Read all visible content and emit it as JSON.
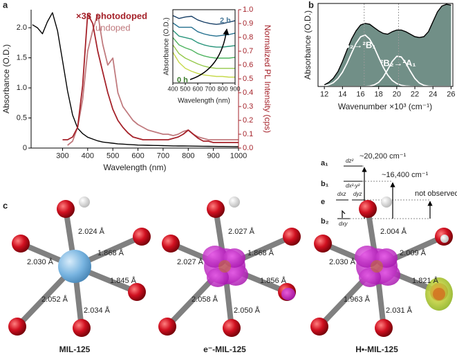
{
  "panel_labels": [
    "a",
    "b",
    "c"
  ],
  "chart_data": [
    {
      "type": "line",
      "xlabel": "Wavelength (nm)",
      "ylabel": "Absorbance (O.D.)",
      "y2label": "Normalized PL Intensity (cps)",
      "xlim": [
        175,
        1000
      ],
      "xticks": [
        300,
        400,
        500,
        600,
        700,
        800,
        900,
        1000
      ],
      "ylim": [
        0,
        2.3
      ],
      "yticks": [
        0,
        0.5,
        {
          "value": 1,
          "label": "1.0"
        },
        1.5,
        {
          "value": 2,
          "label": "2.0"
        }
      ],
      "y2lim": [
        0,
        1
      ],
      "y2ticks": [
        {
          "value": 0,
          "label": "0.0"
        },
        0.1,
        0.2,
        0.3,
        0.4,
        0.5,
        0.6,
        0.7,
        0.8,
        0.9,
        {
          "value": 1,
          "label": "1.0"
        }
      ],
      "y2color": "#a5222a",
      "x": [
        180,
        200,
        220,
        240,
        260,
        280,
        300,
        320,
        340,
        360,
        380,
        400,
        420,
        440,
        460,
        480,
        500,
        520,
        540,
        560,
        580,
        600,
        620,
        640,
        660,
        680,
        700,
        720,
        740,
        760,
        780,
        800,
        820,
        840,
        860,
        880,
        900,
        920,
        940,
        960,
        980,
        1000
      ],
      "series": [
        {
          "color": "#000000",
          "values": [
            2.05,
            2.0,
            1.9,
            2.1,
            2.25,
            1.95,
            1.45,
            0.95,
            0.55,
            0.33,
            0.24,
            0.18,
            0.15,
            0.12,
            0.1,
            0.09,
            0.08,
            0.07,
            0.065,
            0.06,
            0.055,
            0.05,
            0.048,
            0.046,
            0.044,
            0.042,
            0.04,
            0.038,
            0.036,
            0.035,
            0.034,
            0.033,
            0.032,
            0.031,
            0.03,
            0.029,
            0.028,
            0.027,
            0.026,
            0.025,
            0.024,
            0.023
          ]
        },
        {
          "color": "#c07a7e",
          "axis": "y2",
          "values": [
            null,
            null,
            null,
            null,
            null,
            null,
            null,
            0.02,
            0.05,
            0.15,
            0.35,
            0.7,
            0.85,
            0.97,
            0.75,
            0.6,
            0.65,
            0.4,
            0.3,
            0.25,
            0.2,
            0.17,
            0.15,
            0.13,
            0.12,
            0.11,
            0.1,
            0.1,
            0.09,
            0.1,
            0.12,
            0.13,
            0.1,
            0.08,
            0.07,
            0.06,
            0.06,
            0.06,
            0.06,
            0.06,
            0.06,
            0.06
          ]
        },
        {
          "color": "#a5222a",
          "axis": "y2",
          "values": [
            null,
            null,
            null,
            null,
            null,
            null,
            0.06,
            0.06,
            0.08,
            0.15,
            0.45,
            0.97,
            0.9,
            0.7,
            0.55,
            0.4,
            0.28,
            0.2,
            0.15,
            0.11,
            0.08,
            0.07,
            0.06,
            0.06,
            0.06,
            0.06,
            0.06,
            0.06,
            0.07,
            0.08,
            0.1,
            0.13,
            0.1,
            0.07,
            0.05,
            0.05,
            0.04,
            0.04,
            0.04,
            0.04,
            0.04,
            0.04
          ]
        }
      ],
      "annotations": [
        {
          "text": "×33",
          "color": "#a5222a"
        },
        {
          "text": "photodoped",
          "color": "#a5222a"
        },
        {
          "text": "undoped",
          "color": "#c07a7e"
        }
      ]
    },
    {
      "type": "line",
      "xlabel": "Wavelength (nm)",
      "ylabel": "Absorbance (O.D.)",
      "xlim": [
        400,
        900
      ],
      "xticks": [
        400,
        500,
        600,
        700,
        800,
        900
      ],
      "ylim": [
        0,
        1
      ],
      "x": [
        400,
        450,
        500,
        550,
        600,
        650,
        700,
        750,
        800,
        850,
        900
      ],
      "series": [
        {
          "color": "#c6d94a",
          "values": [
            0.42,
            0.28,
            0.2,
            0.16,
            0.13,
            0.11,
            0.1,
            0.09,
            0.09,
            0.08,
            0.08
          ]
        },
        {
          "color": "#94c84a",
          "values": [
            0.52,
            0.4,
            0.34,
            0.3,
            0.26,
            0.23,
            0.21,
            0.2,
            0.2,
            0.2,
            0.2
          ]
        },
        {
          "color": "#4db35e",
          "values": [
            0.62,
            0.52,
            0.48,
            0.45,
            0.4,
            0.37,
            0.35,
            0.34,
            0.34,
            0.34,
            0.35
          ]
        },
        {
          "color": "#27947a",
          "values": [
            0.72,
            0.64,
            0.62,
            0.6,
            0.55,
            0.52,
            0.5,
            0.49,
            0.49,
            0.5,
            0.51
          ]
        },
        {
          "color": "#226f8e",
          "values": [
            0.82,
            0.76,
            0.76,
            0.76,
            0.7,
            0.67,
            0.65,
            0.64,
            0.65,
            0.66,
            0.68
          ]
        },
        {
          "color": "#173f66",
          "values": [
            0.92,
            0.88,
            0.9,
            0.91,
            0.86,
            0.83,
            0.81,
            0.8,
            0.81,
            0.83,
            0.85
          ]
        }
      ],
      "annotations": [
        {
          "text": "2 h",
          "color": "#4a7a9a"
        },
        {
          "text": "0 h",
          "color": "#3a7a2a"
        }
      ]
    },
    {
      "type": "line",
      "xlabel": "Wavenumber ×10³ (cm⁻¹)",
      "ylabel": "Absorbance (O.D.)",
      "xlim": [
        11.3,
        26.2
      ],
      "xticks": [
        12,
        14,
        16,
        18,
        20,
        22,
        24,
        26
      ],
      "ylim": [
        0,
        1
      ],
      "vlines": [
        16.4,
        20.2
      ],
      "x": [
        12,
        12.5,
        13,
        13.5,
        14,
        14.5,
        15,
        15.5,
        16,
        16.5,
        17,
        17.5,
        18,
        18.5,
        19,
        19.5,
        20,
        20.5,
        21,
        21.5,
        22,
        22.5,
        23,
        23.5,
        24,
        24.5,
        25,
        25.5,
        26
      ],
      "series": [
        {
          "color": "#000000",
          "fill": "#718f87",
          "values": [
            0.02,
            0.05,
            0.1,
            0.18,
            0.3,
            0.44,
            0.57,
            0.67,
            0.74,
            0.76,
            0.75,
            0.71,
            0.67,
            0.64,
            0.63,
            0.66,
            0.68,
            0.68,
            0.66,
            0.63,
            0.6,
            0.59,
            0.6,
            0.66,
            0.78,
            0.9,
            0.97,
            0.99,
            0.98
          ]
        },
        {
          "color": "#ffffff",
          "values": [
            0.008,
            0.021,
            0.047,
            0.096,
            0.172,
            0.278,
            0.401,
            0.518,
            0.598,
            0.62,
            0.572,
            0.474,
            0.351,
            0.233,
            0.138,
            0.073,
            0.035,
            0.015,
            0.006,
            0.002,
            0,
            0,
            0,
            0,
            0,
            0,
            0,
            0,
            0
          ]
        },
        {
          "color": "#ffffff",
          "values": [
            0,
            0,
            0,
            0,
            0,
            0,
            0,
            0,
            0,
            0,
            0.005,
            0.018,
            0.05,
            0.112,
            0.204,
            0.302,
            0.364,
            0.356,
            0.284,
            0.184,
            0.097,
            0.041,
            0.014,
            0.004,
            0.001,
            0,
            0,
            0,
            0
          ]
        }
      ],
      "annotations": [
        {
          "text": "²B₂→²B₁",
          "color": "#ffffff"
        },
        {
          "text": "²B₂→²A₁",
          "color": "#ffffff"
        }
      ]
    }
  ],
  "energy_diagram": {
    "levels": [
      {
        "label": "a₁",
        "orbitals": [
          "dz²"
        ]
      },
      {
        "label": "b₁",
        "orbitals": [
          "dx²-y²"
        ]
      },
      {
        "label": "e",
        "orbitals": [
          "dxz",
          "dyz"
        ]
      },
      {
        "label": "b₂",
        "orbitals": [
          "dxy"
        ]
      }
    ],
    "transitions": [
      "~20,200 cm⁻¹",
      "~16,400 cm⁻¹",
      "not observed"
    ]
  },
  "molecules": [
    {
      "name": "MIL-125",
      "bonds": [
        "2.024 Å",
        "1.868 Å",
        "2.030 Å",
        "1.845 Å",
        "2.052 Å",
        "2.034 Å"
      ]
    },
    {
      "name": "e⁻-MIL-125",
      "bonds": [
        "2.027 Å",
        "1.868 Å",
        "2.027 Å",
        "1.856 Å",
        "2.058 Å",
        "2.050 Å"
      ]
    },
    {
      "name": "H•-MIL-125",
      "bonds": [
        "2.004 Å",
        "2.009 Å",
        "2.030 Å",
        "1.821 Å",
        "1.963 Å",
        "2.031 Å"
      ]
    }
  ]
}
